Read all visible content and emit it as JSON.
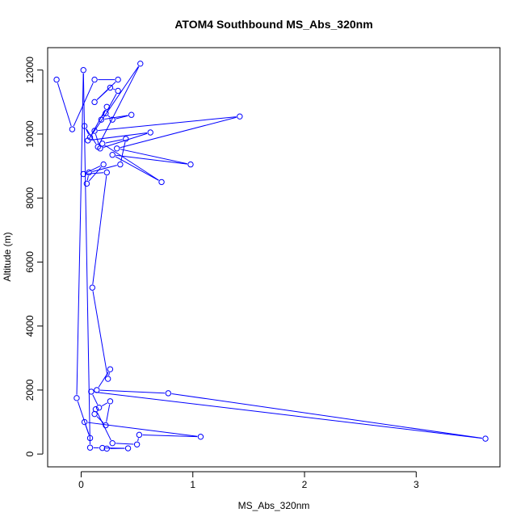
{
  "chart_data": {
    "type": "line",
    "title": "ATOM4 Southbound MS_Abs_320nm",
    "xlabel": "MS_Abs_320nm",
    "ylabel": "Altitude (m)",
    "xlim": [
      -0.3,
      3.75
    ],
    "ylim": [
      -400,
      12700
    ],
    "xticks": [
      0,
      1,
      2,
      3
    ],
    "yticks": [
      0,
      2000,
      4000,
      6000,
      8000,
      10000,
      12000
    ],
    "grid": false,
    "line_color": "#0000ff",
    "marker": "open-circle",
    "series": [
      {
        "x": [
          -0.22,
          -0.08,
          0.12,
          0.33,
          0.12,
          0.26,
          0.33,
          0.22,
          0.28,
          0.45,
          0.18,
          0.23,
          0.08,
          0.03,
          0.15,
          0.53,
          0.06,
          0.62,
          0.17,
          0.12,
          1.42,
          0.32,
          0.98,
          0.28,
          0.72,
          0.19,
          0.4,
          0.35,
          0.07,
          0.05,
          0.2,
          0.02,
          0.23,
          0.1,
          0.24,
          0.26,
          0.14,
          0.78,
          3.62,
          0.09,
          0.16,
          0.26,
          0.22,
          0.12,
          0.13,
          0.28,
          0.5,
          0.52,
          1.07,
          0.03,
          0.08,
          -0.04,
          0.02,
          0.08,
          0.19,
          0.42,
          0.23
        ],
        "y": [
          11700,
          10150,
          11700,
          11700,
          11000,
          11450,
          11350,
          10650,
          10450,
          10600,
          10450,
          10850,
          9900,
          10250,
          9600,
          12200,
          9800,
          10050,
          9550,
          10100,
          10550,
          9550,
          9050,
          9350,
          8500,
          9700,
          9850,
          9050,
          8800,
          8450,
          9050,
          8750,
          8800,
          5200,
          2350,
          2650,
          2000,
          1900,
          480,
          1950,
          1450,
          1650,
          900,
          1250,
          1400,
          340,
          300,
          600,
          540,
          1000,
          500,
          1750,
          12000,
          200,
          190,
          180,
          170
        ]
      }
    ]
  }
}
